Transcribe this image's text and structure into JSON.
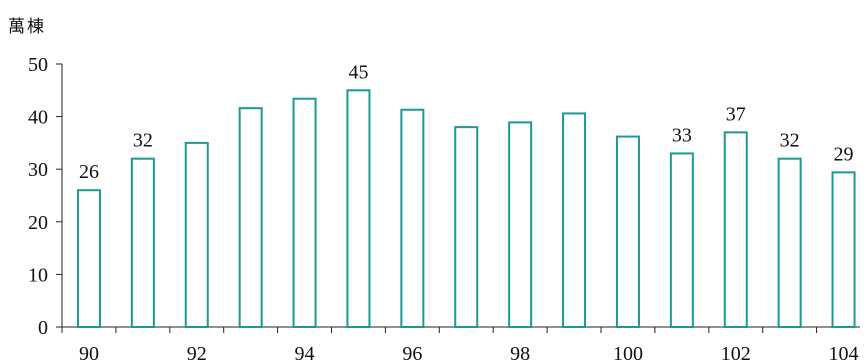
{
  "chart_data": {
    "type": "bar",
    "ylabel": "萬棟",
    "categories": [
      "90",
      "91",
      "92",
      "93",
      "94",
      "95",
      "96",
      "97",
      "98",
      "99",
      "100",
      "101",
      "102",
      "103",
      "104"
    ],
    "values": [
      26,
      32,
      35,
      41.6,
      43.4,
      45,
      41.3,
      38,
      38.9,
      40.6,
      36.2,
      33,
      37,
      32,
      29.4
    ],
    "data_labels": {
      "0": "26",
      "1": "32",
      "5": "45",
      "11": "33",
      "12": "37",
      "13": "32",
      "14": "29"
    },
    "x_tick_labels": {
      "0": "90",
      "2": "92",
      "4": "94",
      "6": "96",
      "8": "98",
      "10": "100",
      "12": "102",
      "14": "104"
    },
    "y_ticks": [
      0,
      10,
      20,
      30,
      40,
      50
    ],
    "ylim": [
      0,
      50
    ],
    "grid": false,
    "bar_color": "#1a9a94",
    "bar_fill": "#ffffff"
  }
}
